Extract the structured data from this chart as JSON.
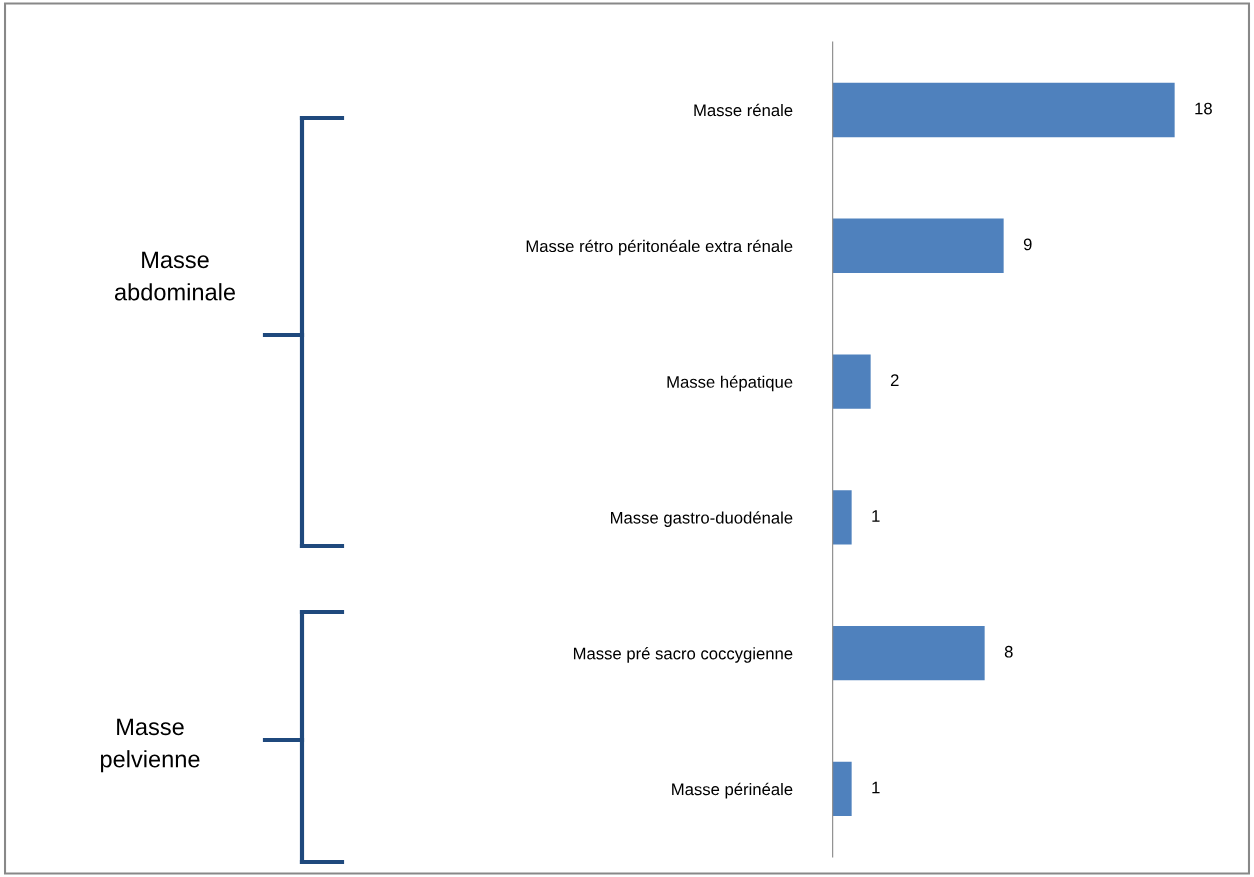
{
  "chart_data": {
    "type": "bar",
    "orientation": "horizontal",
    "categories": [
      "Masse rénale",
      "Masse rétro péritonéale extra rénale",
      "Masse hépatique",
      "Masse gastro-duodénale",
      "Masse pré sacro coccygienne",
      "Masse périnéale"
    ],
    "values": [
      18,
      9,
      2,
      1,
      8,
      1
    ],
    "color": "#4f81bd",
    "data_labels": true,
    "tick_labels": "y",
    "grid": false,
    "legend": false,
    "annotations": [
      "Masse\nabdominale",
      "Masse\npelvienne"
    ]
  }
}
